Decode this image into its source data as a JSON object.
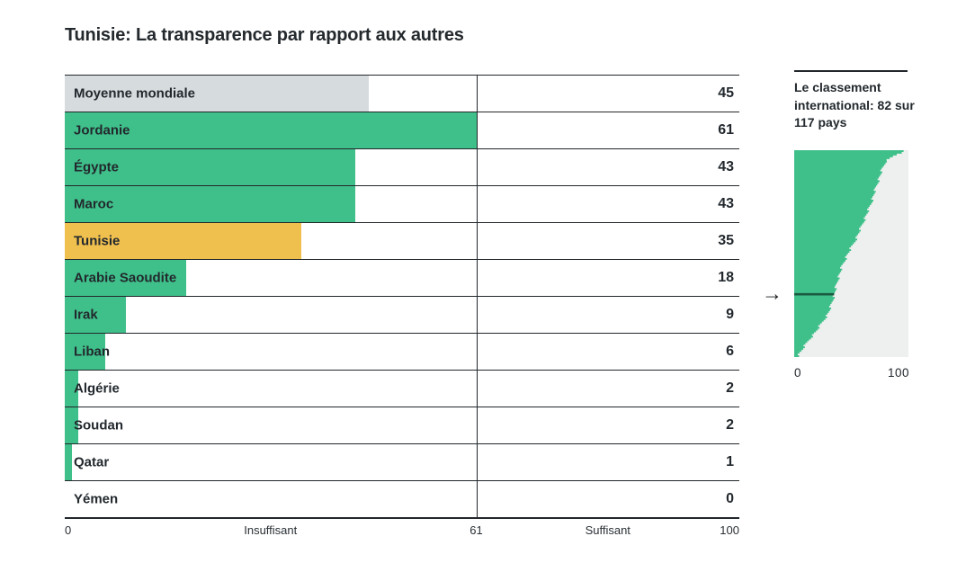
{
  "title": "Tunisie: La transparence par rapport aux autres",
  "colors": {
    "green": "#3fc08a",
    "yellow": "#f0c04f",
    "gray": "#d6dbde",
    "line": "#22272b",
    "text": "#22282d",
    "mini_bg": "#edf0ee",
    "marker": "#1a5a41"
  },
  "chart_data": [
    {
      "type": "bar",
      "orientation": "horizontal",
      "title": "Tunisie: La transparence par rapport aux autres",
      "categories": [
        "Moyenne mondiale",
        "Jordanie",
        "Égypte",
        "Maroc",
        "Tunisie",
        "Arabie Saoudite",
        "Irak",
        "Liban",
        "Algérie",
        "Soudan",
        "Qatar",
        "Yémen"
      ],
      "values": [
        45,
        61,
        43,
        43,
        35,
        18,
        9,
        6,
        2,
        2,
        1,
        0
      ],
      "bar_styles": [
        "gray",
        "green",
        "green",
        "green",
        "yellow",
        "green",
        "green",
        "green",
        "green",
        "green",
        "green",
        "green"
      ],
      "xlim": [
        0,
        100
      ],
      "threshold": 61,
      "grid": "off",
      "axis_labels": {
        "min": "0",
        "low_zone": "Insuffisant",
        "threshold": "61",
        "high_zone": "Suffisant",
        "max": "100"
      }
    },
    {
      "type": "area",
      "title": "Le classement international: 82 sur 117 pays",
      "n_countries": 117,
      "highlight_rank": 82,
      "highlight_value": 35,
      "xlim": [
        0,
        100
      ],
      "x_ticks": [
        "0",
        "100"
      ],
      "distribution_points": [
        [
          0.0,
          97
        ],
        [
          0.02,
          88
        ],
        [
          0.05,
          80
        ],
        [
          0.09,
          77
        ],
        [
          0.17,
          72
        ],
        [
          0.26,
          67
        ],
        [
          0.34,
          61
        ],
        [
          0.43,
          54
        ],
        [
          0.5,
          47
        ],
        [
          0.56,
          42
        ],
        [
          0.63,
          38
        ],
        [
          0.7,
          35
        ],
        [
          0.74,
          33
        ],
        [
          0.79,
          30
        ],
        [
          0.84,
          24
        ],
        [
          0.88,
          19
        ],
        [
          0.92,
          13
        ],
        [
          0.96,
          8
        ],
        [
          1.0,
          3
        ]
      ]
    }
  ],
  "side_panel": {
    "note": "Le classement international: 82 sur 117 pays",
    "arrow_icon": "→",
    "tick_min": "0",
    "tick_max": "100"
  }
}
